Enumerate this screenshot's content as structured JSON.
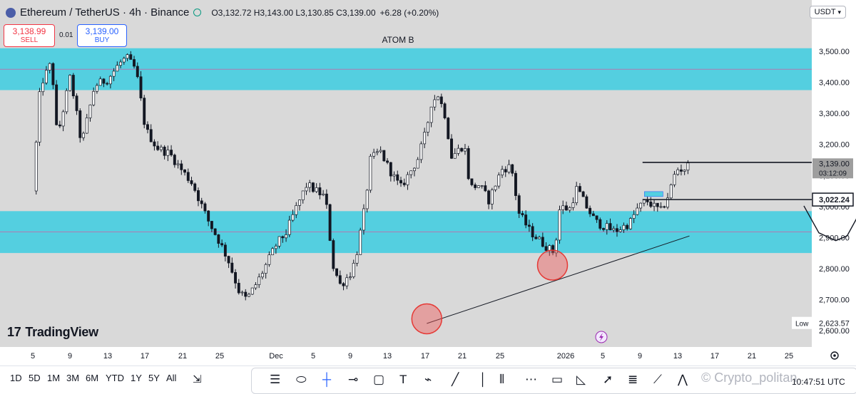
{
  "header": {
    "symbol": "Ethereum / TetherUS · 4h · Binance",
    "ohlc": "O3,132.72 H3,143.00 L3,130.85 C3,139.00",
    "change": "+6.28 (+0.20%)"
  },
  "trade": {
    "sell_price": "3,138.99",
    "sell_label": "SELL",
    "spread": "0.01",
    "buy_price": "3,139.00",
    "buy_label": "BUY"
  },
  "currency": "USDT",
  "annotation": "ATOM B",
  "logo_text": "TradingView",
  "price_labels": {
    "current": "3,139.00",
    "countdown": "03:12:09",
    "level": "3,022.24",
    "low_label": "Low",
    "low_value": "2,623.57"
  },
  "timeframes": [
    "1D",
    "5D",
    "1M",
    "3M",
    "6M",
    "YTD",
    "1Y",
    "5Y",
    "All"
  ],
  "watermark": "Crypto_politan",
  "clock": "10:47:51 UTC",
  "colors": {
    "zone": "#54cfe0",
    "up": "#ffffff",
    "down": "#131722",
    "circle": "#f05a5a",
    "background": "#d9d9d9"
  },
  "chart_data": {
    "type": "candlestick",
    "symbol": "ETHUSDT",
    "timeframe": "4h",
    "ylim": [
      2580,
      3520
    ],
    "y_ticks": [
      2600,
      2700,
      2800,
      2900,
      3000,
      3100,
      3200,
      3300,
      3400,
      3500
    ],
    "y_tick_labels": [
      "2,600.00",
      "2,700.00",
      "2,800.00",
      "2,900.00",
      "3,000.00",
      "3,100.00",
      "3,200.00",
      "3,300.00",
      "3,400.00",
      "3,500.00"
    ],
    "x_tick_labels": [
      "5",
      "9",
      "13",
      "17",
      "21",
      "25",
      "Dec",
      "5",
      "9",
      "13",
      "17",
      "21",
      "25",
      "2026",
      "5",
      "9",
      "13",
      "17",
      "21",
      "25"
    ],
    "last_price": 3139.0,
    "low": 2623.57,
    "zones": [
      {
        "y1": 3375,
        "y2": 3510,
        "mid": 3442
      },
      {
        "y1": 2850,
        "y2": 2985,
        "mid": 2918
      }
    ],
    "levels": [
      3142,
      3022.24
    ],
    "trendline": [
      [
        21.0,
        2623
      ],
      [
        35.0,
        2905
      ]
    ],
    "path_segments": [
      [
        [
          41.1,
          3002
        ],
        [
          41.9,
          2915
        ],
        [
          42.8,
          2890
        ],
        [
          43.4,
          2905
        ],
        [
          43.9,
          2960
        ],
        [
          44.2,
          3200
        ],
        [
          44.4,
          3510
        ]
      ]
    ],
    "markers": [
      {
        "x": 21.0,
        "y": 2638
      },
      {
        "x": 27.7,
        "y": 2811
      }
    ],
    "candle_anchors": [
      [
        0.0,
        3050
      ],
      [
        0.4,
        3390
      ],
      [
        1.0,
        3465
      ],
      [
        1.3,
        3220
      ],
      [
        2.0,
        3420
      ],
      [
        2.6,
        3200
      ],
      [
        3.3,
        3390
      ],
      [
        4.0,
        3410
      ],
      [
        4.6,
        3460
      ],
      [
        5.0,
        3480
      ],
      [
        5.5,
        3440
      ],
      [
        6.0,
        3250
      ],
      [
        6.6,
        3190
      ],
      [
        7.3,
        3170
      ],
      [
        7.9,
        3120
      ],
      [
        8.5,
        3075
      ],
      [
        9.3,
        2960
      ],
      [
        10.0,
        2880
      ],
      [
        10.4,
        2830
      ],
      [
        11.0,
        2725
      ],
      [
        11.4,
        2700
      ],
      [
        12.0,
        2760
      ],
      [
        12.5,
        2820
      ],
      [
        13.0,
        2880
      ],
      [
        13.5,
        2915
      ],
      [
        14.0,
        2990
      ],
      [
        14.6,
        3070
      ],
      [
        15.1,
        3050
      ],
      [
        15.6,
        3030
      ],
      [
        16.0,
        2810
      ],
      [
        16.4,
        2745
      ],
      [
        17.0,
        2790
      ],
      [
        17.3,
        2860
      ],
      [
        17.7,
        3000
      ],
      [
        18.0,
        3150
      ],
      [
        18.5,
        3180
      ],
      [
        19.0,
        3120
      ],
      [
        19.6,
        3060
      ],
      [
        20.0,
        3100
      ],
      [
        20.5,
        3150
      ],
      [
        21.0,
        3250
      ],
      [
        21.2,
        3330
      ],
      [
        21.6,
        3360
      ],
      [
        22.0,
        3290
      ],
      [
        22.3,
        3160
      ],
      [
        23.0,
        3200
      ],
      [
        23.3,
        3060
      ],
      [
        23.8,
        3070
      ],
      [
        24.3,
        3020
      ],
      [
        25.0,
        3120
      ],
      [
        25.5,
        3130
      ],
      [
        25.9,
        2980
      ],
      [
        26.5,
        2920
      ],
      [
        27.2,
        2880
      ],
      [
        27.8,
        2850
      ],
      [
        28.1,
        3000
      ],
      [
        28.6,
        2990
      ],
      [
        29.0,
        3060
      ],
      [
        29.5,
        3000
      ],
      [
        30.0,
        2950
      ],
      [
        31.0,
        2920
      ],
      [
        31.8,
        2945
      ],
      [
        32.2,
        2990
      ],
      [
        32.7,
        3020
      ],
      [
        33.1,
        3000
      ],
      [
        33.5,
        2985
      ],
      [
        33.9,
        3040
      ],
      [
        34.3,
        3120
      ],
      [
        34.7,
        3120
      ],
      [
        35.0,
        3135
      ]
    ]
  }
}
